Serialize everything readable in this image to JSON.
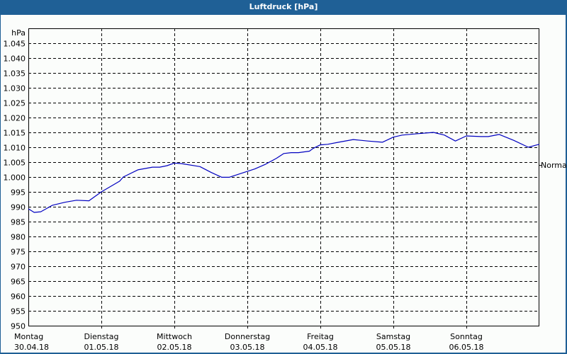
{
  "window": {
    "title": "Luftdruck [hPa]"
  },
  "chart_data": {
    "type": "line",
    "title": "Luftdruck [hPa]",
    "xlabel": "",
    "ylabel": "hPa",
    "ylim": [
      950,
      1045
    ],
    "y_ticks": [
      "1.045",
      "1.040",
      "1.035",
      "1.030",
      "1.025",
      "1.020",
      "1.015",
      "1.010",
      "1.005",
      "1.000",
      "995",
      "990",
      "985",
      "980",
      "975",
      "970",
      "965",
      "960",
      "955",
      "950"
    ],
    "y_tick_values": [
      1045,
      1040,
      1035,
      1030,
      1025,
      1020,
      1015,
      1010,
      1005,
      1000,
      995,
      990,
      985,
      980,
      975,
      970,
      965,
      960,
      955,
      950
    ],
    "x_ticks": [
      {
        "day": "Montag",
        "date": "30.04.18"
      },
      {
        "day": "Dienstag",
        "date": "01.05.18"
      },
      {
        "day": "Mittwoch",
        "date": "02.05.18"
      },
      {
        "day": "Donnerstag",
        "date": "03.05.18"
      },
      {
        "day": "Freitag",
        "date": "04.05.18"
      },
      {
        "day": "Samstag",
        "date": "05.05.18"
      },
      {
        "day": "Sonntag",
        "date": "06.05.18"
      }
    ],
    "grid": true,
    "reference_label": "Normal",
    "series": [
      {
        "name": "Luftdruck",
        "color": "#0000c0",
        "x_days": [
          0,
          0.08,
          0.17,
          0.33,
          0.5,
          0.66,
          0.83,
          1.0,
          1.25,
          1.3,
          1.5,
          1.7,
          1.8,
          1.9,
          2.0,
          2.1,
          2.35,
          2.5,
          2.65,
          2.75,
          2.95,
          3.1,
          3.25,
          3.4,
          3.5,
          3.6,
          3.7,
          3.85,
          3.9,
          4.0,
          4.1,
          4.25,
          4.45,
          4.65,
          4.85,
          5.0,
          5.12,
          5.35,
          5.55,
          5.7,
          5.85,
          6.0,
          6.2,
          6.3,
          6.45,
          6.65,
          6.85,
          6.95,
          7.0
        ],
        "values": [
          989.3,
          988.1,
          988.3,
          990.5,
          991.5,
          992.2,
          992.0,
          995.0,
          998.6,
          1000.0,
          1002.4,
          1003.3,
          1003.3,
          1003.8,
          1004.7,
          1004.5,
          1003.5,
          1001.6,
          999.9,
          999.9,
          1001.5,
          1002.7,
          1004.3,
          1006.3,
          1007.9,
          1008.2,
          1008.2,
          1008.7,
          1009.6,
          1010.8,
          1011.0,
          1011.7,
          1012.6,
          1012.1,
          1011.7,
          1013.4,
          1014.1,
          1014.6,
          1015.0,
          1014.1,
          1012.1,
          1013.8,
          1013.6,
          1013.6,
          1014.3,
          1012.3,
          1010.0,
          1010.7,
          1011.0
        ]
      }
    ]
  }
}
